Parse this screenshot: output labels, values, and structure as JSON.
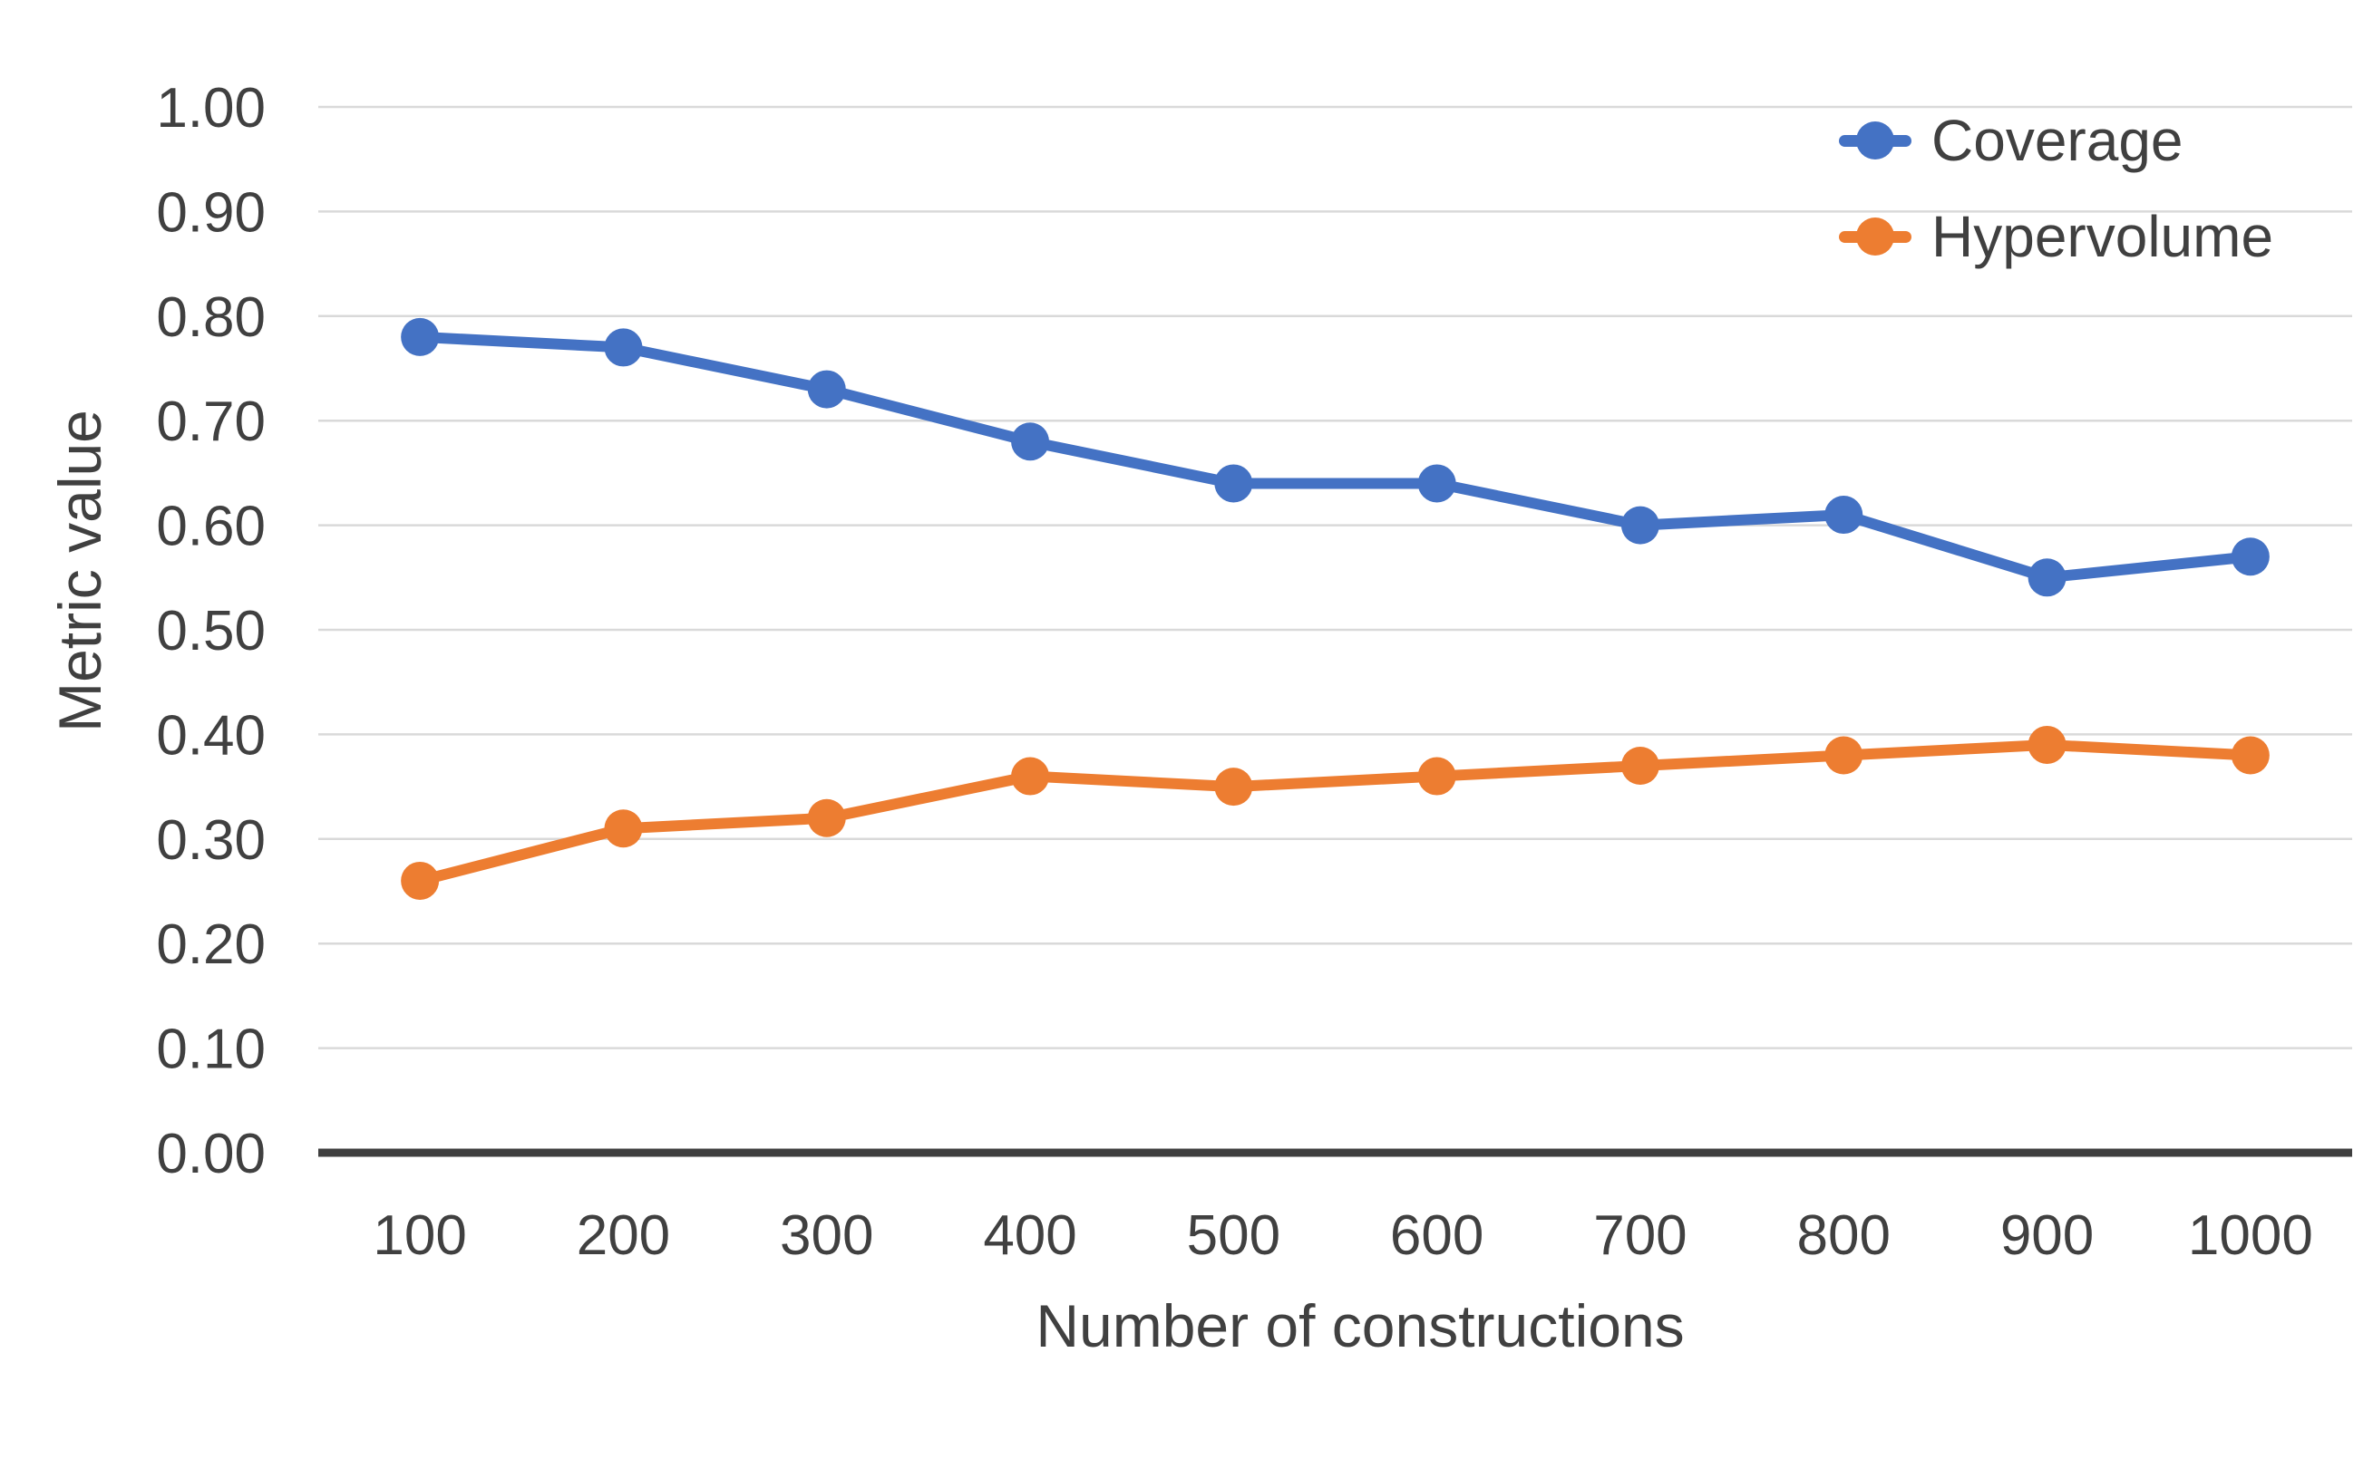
{
  "chart_data": {
    "type": "line",
    "categories": [
      "100",
      "200",
      "300",
      "400",
      "500",
      "600",
      "700",
      "800",
      "900",
      "1000"
    ],
    "series": [
      {
        "name": "Coverage",
        "color": "#4472C4",
        "values": [
          0.78,
          0.77,
          0.73,
          0.68,
          0.64,
          0.64,
          0.6,
          0.61,
          0.55,
          0.57
        ]
      },
      {
        "name": "Hypervolume",
        "color": "#ED7D31",
        "values": [
          0.26,
          0.31,
          0.32,
          0.36,
          0.35,
          0.36,
          0.37,
          0.38,
          0.39,
          0.38
        ]
      }
    ],
    "title": "",
    "xlabel": "Number of constructions",
    "ylabel": "Metric value",
    "ylim": [
      0.0,
      1.0
    ],
    "y_tick_step": 0.1,
    "y_tick_labels": [
      "0.00",
      "0.10",
      "0.20",
      "0.30",
      "0.40",
      "0.50",
      "0.60",
      "0.70",
      "0.80",
      "0.90",
      "1.00"
    ],
    "grid": true,
    "legend_position": "top-right"
  },
  "style": {
    "grid_color": "#D9D9D9",
    "axis_line_color": "#3F3F3F",
    "text_color": "#404040",
    "background_color": "#FFFFFF"
  }
}
